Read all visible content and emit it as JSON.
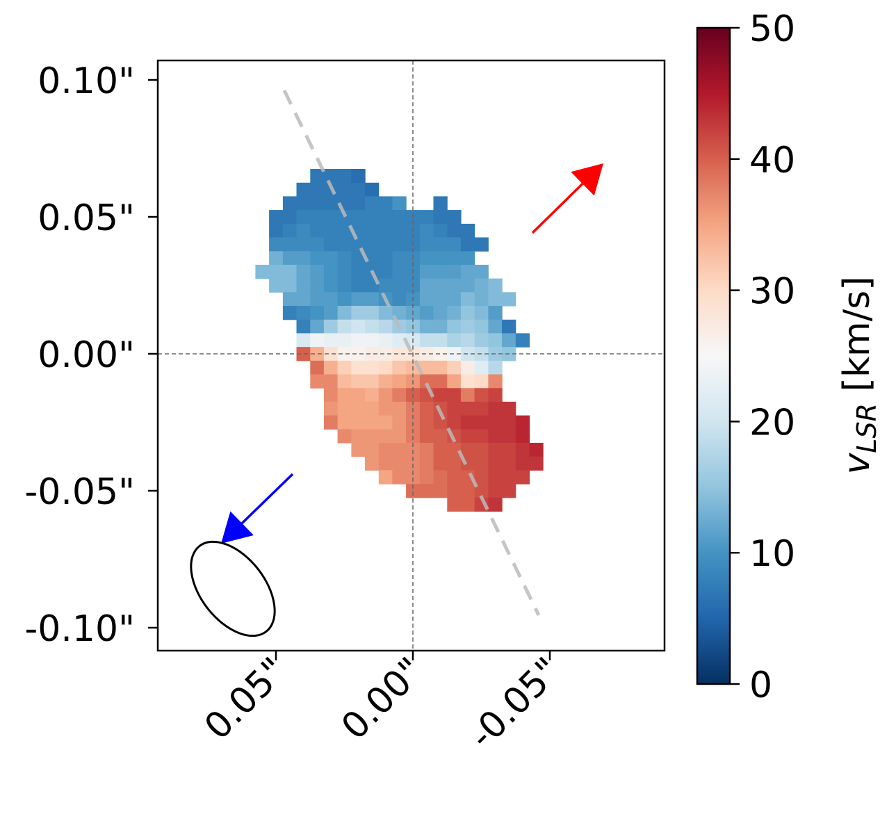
{
  "chart_data": {
    "type": "heatmap",
    "title": "",
    "xlabel": "",
    "ylabel": "",
    "x_ticks": [
      {
        "value": 0.05,
        "label": "0.05\""
      },
      {
        "value": 0.0,
        "label": "0.00\""
      },
      {
        "value": -0.05,
        "label": "-0.05\""
      }
    ],
    "y_ticks": [
      {
        "value": 0.1,
        "label": "0.10\""
      },
      {
        "value": 0.05,
        "label": "0.05\""
      },
      {
        "value": 0.0,
        "label": "0.00\""
      },
      {
        "value": -0.05,
        "label": "-0.05\""
      },
      {
        "value": -0.1,
        "label": "-0.10\""
      }
    ],
    "xlim": [
      0.0932,
      -0.0919
    ],
    "ylim": [
      -0.1084,
      0.1071
    ],
    "colormap": "RdBu_r",
    "colorbar": {
      "label_main": "v",
      "label_sub": "LSR",
      "label_unit": " [km/s]",
      "range": [
        0,
        50
      ],
      "ticks": [
        "0",
        "10",
        "20",
        "30",
        "40",
        "50"
      ]
    },
    "pixel_size_arcsec": 0.005,
    "first_col_x_arcsec": 0.055,
    "first_row_y_arcsec": 0.065,
    "rows": [
      {
        "start": 4,
        "values": [
          7,
          7,
          7,
          6
        ]
      },
      {
        "start": 3,
        "values": [
          7,
          7,
          7,
          7,
          7,
          6
        ]
      },
      {
        "start": 2,
        "values": [
          7,
          7,
          7,
          7,
          7,
          7,
          8,
          8,
          10,
          null,
          null,
          7
        ]
      },
      {
        "start": 1,
        "values": [
          7,
          7,
          8,
          8,
          8,
          8,
          8,
          8,
          8,
          8,
          8,
          8,
          7,
          7
        ]
      },
      {
        "start": 1,
        "values": [
          7,
          8,
          9,
          8,
          8,
          8,
          8,
          8,
          8,
          8,
          8,
          9,
          8,
          7,
          7
        ]
      },
      {
        "start": 1,
        "values": [
          9,
          9,
          9,
          9,
          8,
          8,
          8,
          8,
          8,
          8,
          8,
          9,
          9,
          9,
          7,
          7
        ]
      },
      {
        "start": 1,
        "values": [
          13,
          11,
          11,
          10,
          10,
          9,
          8,
          8,
          8,
          9,
          9,
          10,
          10,
          10,
          10
        ]
      },
      {
        "start": 0,
        "values": [
          14,
          14,
          14,
          12,
          11,
          10,
          9,
          8,
          8,
          8,
          9,
          9,
          11,
          11,
          11,
          12,
          12
        ]
      },
      {
        "start": 1,
        "values": [
          14,
          14,
          12,
          11,
          10,
          9,
          8,
          8,
          9,
          9,
          9,
          12,
          12,
          12,
          12,
          13,
          14
        ]
      },
      {
        "start": 2,
        "values": [
          12,
          12,
          11,
          11,
          10,
          11,
          11,
          10,
          9,
          10,
          12,
          12,
          12,
          14,
          13,
          14,
          14
        ]
      },
      {
        "start": 2,
        "values": [
          8,
          9,
          10,
          11,
          14,
          16,
          16,
          14,
          13,
          12,
          11,
          12,
          13,
          15,
          14,
          11
        ]
      },
      {
        "start": 3,
        "values": [
          8,
          12,
          16,
          19,
          20,
          19,
          18,
          16,
          15,
          13,
          13,
          15,
          16,
          15,
          12,
          7
        ]
      },
      {
        "start": 3,
        "values": [
          21,
          24,
          23,
          23,
          24,
          24,
          23,
          22,
          21,
          19,
          19,
          17,
          18,
          16,
          15,
          12,
          8
        ]
      },
      {
        "start": 3,
        "values": [
          40,
          34,
          29,
          26,
          26,
          27,
          27,
          28,
          28,
          27,
          26,
          24,
          20,
          19,
          16,
          15
        ]
      },
      {
        "start": 4,
        "values": [
          39,
          34,
          31,
          29,
          29,
          30,
          32,
          33,
          33,
          33,
          31,
          27,
          22,
          18
        ]
      },
      {
        "start": 4,
        "values": [
          37,
          37,
          33,
          32,
          32,
          34,
          35,
          36,
          39,
          39,
          35,
          29,
          30,
          37
        ]
      },
      {
        "start": 5,
        "values": [
          37,
          35,
          35,
          34,
          36,
          38,
          40,
          41,
          42,
          42,
          38,
          41,
          42
        ]
      },
      {
        "start": 5,
        "values": [
          36,
          35,
          35,
          35,
          36,
          36,
          38,
          40,
          41,
          42,
          42,
          42,
          43,
          43
        ]
      },
      {
        "start": 5,
        "values": [
          38,
          35,
          35,
          35,
          35,
          36,
          38,
          40,
          41,
          42,
          43,
          43,
          43,
          43,
          44
        ]
      },
      {
        "start": 6,
        "values": [
          37,
          36,
          36,
          36,
          36,
          38,
          40,
          40,
          41,
          42,
          42,
          43,
          43,
          44
        ]
      },
      {
        "start": 7,
        "values": [
          36,
          36,
          37,
          37,
          37,
          38,
          40,
          40,
          41,
          41,
          42,
          42,
          43,
          44
        ]
      },
      {
        "start": 8,
        "values": [
          36,
          37,
          37,
          37,
          38,
          40,
          40,
          41,
          41,
          42,
          42,
          43,
          43
        ]
      },
      {
        "start": 9,
        "values": [
          35,
          37,
          37,
          38,
          39,
          40,
          40,
          41,
          42,
          42,
          42
        ]
      },
      {
        "start": 11,
        "values": [
          39,
          39,
          39,
          40,
          40,
          41,
          42,
          42
        ]
      },
      {
        "start": 14,
        "values": [
          40,
          40,
          42,
          43
        ]
      }
    ],
    "annotations": {
      "redshift_arrow_color": "#ff0000",
      "blueshift_arrow_color": "#0000ff",
      "axis_line_color": "#bbbbbb"
    }
  }
}
